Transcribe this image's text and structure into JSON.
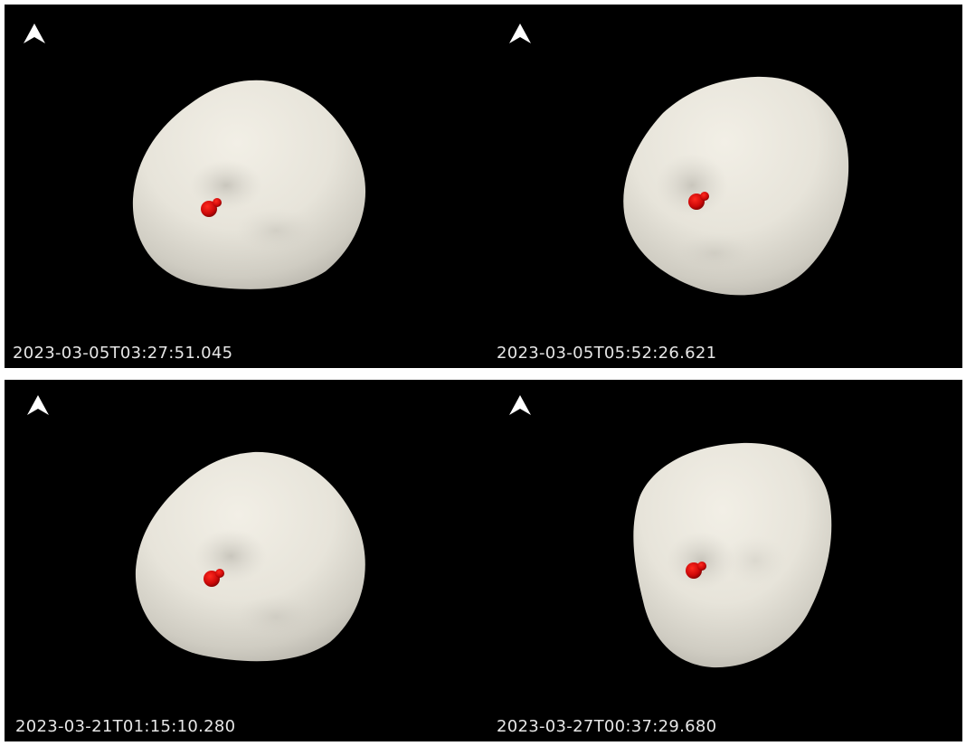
{
  "colors": {
    "background": "#000000",
    "asteroid": "#ebe8dd",
    "marker": "#d40a0a",
    "text": "#e6e6e6"
  },
  "views": [
    {
      "timestamp": "2023-03-05T03:27:51.045",
      "icon": "north-arrow-icon"
    },
    {
      "timestamp": "2023-03-05T05:52:26.621",
      "icon": "north-arrow-icon"
    },
    {
      "timestamp": "2023-03-21T01:15:10.280",
      "icon": "north-arrow-icon"
    },
    {
      "timestamp": "2023-03-27T00:37:29.680",
      "icon": "north-arrow-icon"
    }
  ]
}
